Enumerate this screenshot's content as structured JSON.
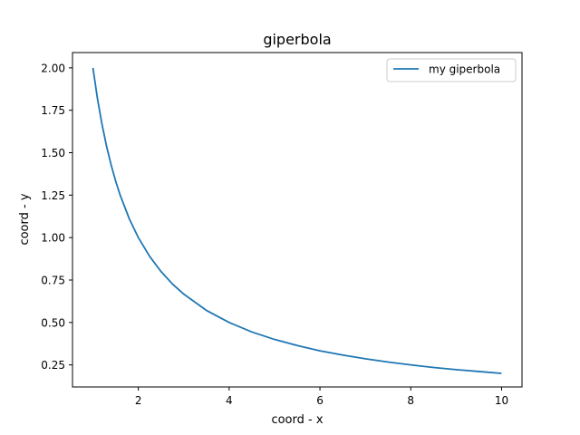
{
  "chart_data": {
    "type": "line",
    "title": "giperbola",
    "xlabel": "coord - x",
    "ylabel": "coord - y",
    "xlim": [
      0.55,
      10.45
    ],
    "ylim": [
      0.12,
      2.09
    ],
    "xticks": [
      2,
      4,
      6,
      8,
      10
    ],
    "xtick_labels": [
      "2",
      "4",
      "6",
      "8",
      "10"
    ],
    "yticks": [
      0.25,
      0.5,
      0.75,
      1.0,
      1.25,
      1.5,
      1.75,
      2.0
    ],
    "ytick_labels": [
      "0.25",
      "0.50",
      "0.75",
      "1.00",
      "1.25",
      "1.50",
      "1.75",
      "2.00"
    ],
    "grid": false,
    "legend_position": "top-right",
    "series": [
      {
        "name": "my giperbola",
        "color": "#1f77b4",
        "x": [
          1,
          1.1,
          1.2,
          1.3,
          1.4,
          1.5,
          1.6,
          1.8,
          2,
          2.25,
          2.5,
          2.75,
          3,
          3.5,
          4,
          4.5,
          5,
          5.5,
          6,
          6.5,
          7,
          7.5,
          8,
          8.5,
          9,
          9.5,
          10
        ],
        "y": [
          2.0,
          1.818,
          1.667,
          1.538,
          1.429,
          1.333,
          1.25,
          1.111,
          1.0,
          0.889,
          0.8,
          0.727,
          0.667,
          0.571,
          0.5,
          0.444,
          0.4,
          0.364,
          0.333,
          0.308,
          0.286,
          0.267,
          0.25,
          0.235,
          0.222,
          0.211,
          0.2
        ]
      }
    ]
  }
}
